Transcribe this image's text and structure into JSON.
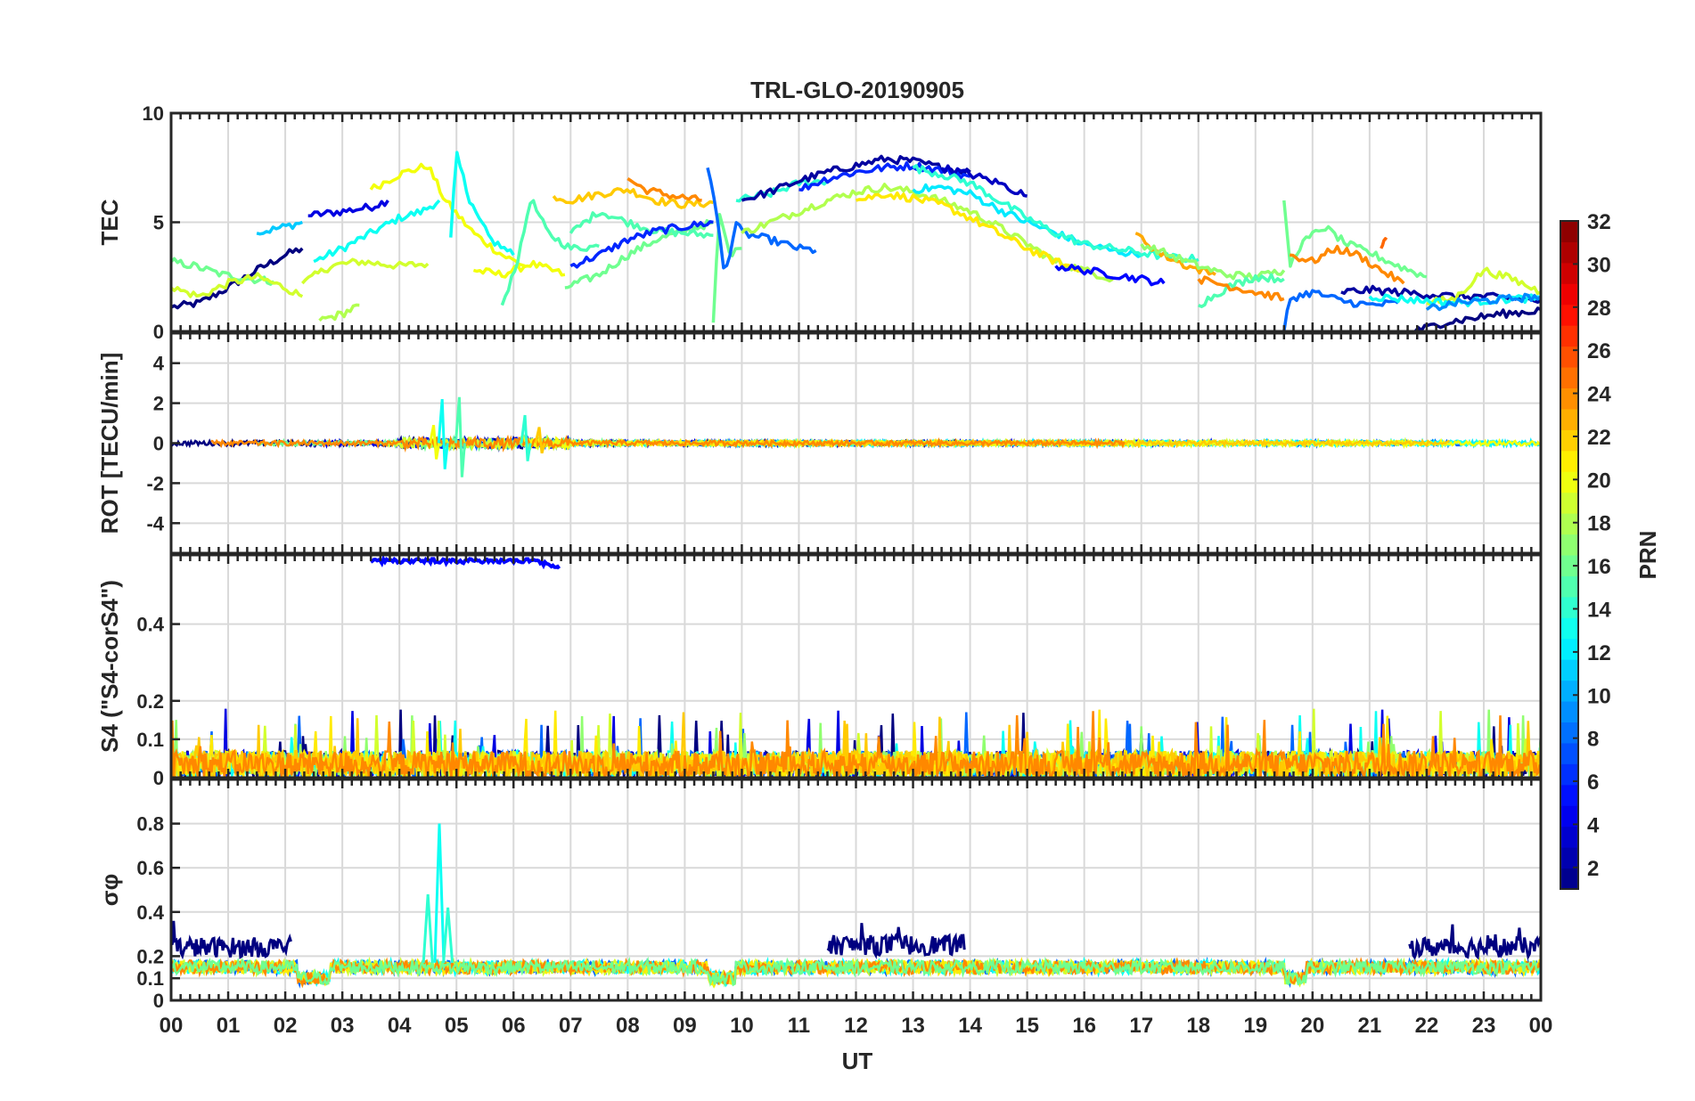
{
  "chart_data": {
    "type": "line",
    "title": "TRL-GLO-20190905",
    "xlabel": "UT",
    "xlim": [
      0,
      24
    ],
    "x_ticks": [
      "00",
      "01",
      "02",
      "03",
      "04",
      "05",
      "06",
      "07",
      "08",
      "09",
      "10",
      "11",
      "12",
      "13",
      "14",
      "15",
      "16",
      "17",
      "18",
      "19",
      "20",
      "21",
      "22",
      "23",
      "00"
    ],
    "grid": true,
    "colorbar": {
      "label": "PRN",
      "colormap": "jet",
      "range": [
        1,
        32
      ],
      "ticks": [
        "2",
        "4",
        "6",
        "8",
        "10",
        "12",
        "14",
        "16",
        "18",
        "20",
        "22",
        "24",
        "26",
        "28",
        "30",
        "32"
      ]
    },
    "panels": [
      {
        "id": "tec",
        "ylabel": "TEC",
        "ylim": [
          0,
          10
        ],
        "y_ticks": [
          "0",
          "5",
          "10"
        ],
        "series": [
          {
            "prn": 1,
            "x": [
              0.0,
              0.5,
              1.0,
              1.5,
              2.0,
              2.3
            ],
            "y": [
              1.1,
              1.3,
              2.0,
              2.8,
              3.5,
              3.8
            ]
          },
          {
            "prn": 4,
            "x": [
              2.4,
              3.0,
              3.5,
              3.8
            ],
            "y": [
              5.3,
              5.5,
              5.7,
              6.0
            ]
          },
          {
            "prn": 11,
            "x": [
              1.5,
              2.0,
              2.3
            ],
            "y": [
              4.5,
              4.8,
              5.0
            ]
          },
          {
            "prn": 13,
            "x": [
              2.5,
              3.0,
              3.5,
              4.0,
              4.4,
              4.7
            ],
            "y": [
              3.2,
              3.8,
              4.5,
              5.2,
              5.5,
              6.0
            ]
          },
          {
            "prn": 19,
            "x": [
              2.3,
              2.8,
              3.3,
              4.0,
              4.5
            ],
            "y": [
              2.2,
              3.0,
              3.2,
              3.0,
              3.1
            ]
          },
          {
            "prn": 20,
            "x": [
              3.5,
              4.0,
              4.5,
              4.8,
              5.3,
              5.8,
              6.2
            ],
            "y": [
              6.5,
              7.2,
              7.6,
              6.0,
              4.5,
              3.5,
              3.0
            ]
          },
          {
            "prn": 20,
            "x": [
              5.3,
              5.8,
              6.3,
              6.9
            ],
            "y": [
              2.8,
              2.6,
              3.1,
              2.6
            ]
          },
          {
            "prn": 18,
            "x": [
              2.6,
              3.0,
              3.3
            ],
            "y": [
              0.5,
              0.8,
              1.2
            ]
          },
          {
            "prn": 16,
            "x": [
              0.0,
              0.4,
              0.9,
              1.4,
              1.8
            ],
            "y": [
              3.2,
              3.0,
              2.6,
              2.4,
              2.3
            ]
          },
          {
            "prn": 19,
            "x": [
              0.0,
              0.5,
              1.0,
              1.5,
              2.0,
              2.3
            ],
            "y": [
              2.0,
              1.6,
              2.2,
              2.5,
              2.0,
              1.6
            ]
          },
          {
            "prn": 13,
            "x": [
              4.9,
              5.0,
              5.2,
              5.6,
              6.0
            ],
            "y": [
              4.3,
              8.5,
              6.0,
              4.2,
              3.5
            ]
          },
          {
            "prn": 15,
            "x": [
              5.8,
              6.1,
              6.3,
              6.6,
              7.0,
              7.5
            ],
            "y": [
              1.2,
              3.5,
              6.1,
              4.5,
              3.8,
              3.9
            ]
          },
          {
            "prn": 22,
            "x": [
              6.7,
              7.0,
              7.5,
              8.0,
              8.5,
              9.0,
              9.5
            ],
            "y": [
              6.2,
              6.0,
              6.3,
              6.5,
              6.0,
              5.8,
              5.9
            ]
          },
          {
            "prn": 24,
            "x": [
              8.0,
              8.3,
              8.8,
              9.3
            ],
            "y": [
              7.0,
              6.5,
              6.2,
              6.0
            ]
          },
          {
            "prn": 16,
            "x": [
              6.9,
              7.5,
              8.0,
              8.5,
              9.0,
              9.5
            ],
            "y": [
              2.0,
              2.6,
              3.5,
              4.2,
              4.6,
              5.0
            ]
          },
          {
            "prn": 15,
            "x": [
              7.0,
              7.5,
              8.0,
              8.5,
              9.0,
              9.5
            ],
            "y": [
              4.5,
              5.5,
              5.0,
              4.6,
              4.5,
              4.4
            ]
          },
          {
            "prn": 6,
            "x": [
              7.0,
              7.5,
              8.0,
              8.5,
              9.0,
              9.5
            ],
            "y": [
              3.0,
              3.5,
              4.2,
              4.6,
              4.8,
              5.0
            ]
          },
          {
            "prn": 16,
            "x": [
              9.5,
              9.6,
              9.8,
              10.0
            ],
            "y": [
              0.4,
              5.5,
              3.5,
              3.8
            ]
          },
          {
            "prn": 8,
            "x": [
              9.4,
              9.5,
              9.7,
              9.9,
              10.0,
              10.5,
              11.0,
              11.3
            ],
            "y": [
              7.5,
              6.5,
              2.5,
              5.0,
              4.5,
              4.2,
              3.8,
              3.7
            ]
          },
          {
            "prn": 14,
            "x": [
              9.9,
              10.5,
              11.0,
              11.5
            ],
            "y": [
              6.0,
              6.3,
              6.8,
              6.9
            ]
          },
          {
            "prn": 2,
            "x": [
              10.0,
              10.5,
              11.0,
              11.5,
              12.0,
              12.5,
              13.0,
              13.5,
              14.0
            ],
            "y": [
              6.0,
              6.4,
              6.9,
              7.3,
              7.6,
              7.9,
              7.8,
              7.5,
              7.3
            ]
          },
          {
            "prn": 6,
            "x": [
              11.0,
              11.5,
              12.0,
              12.5,
              13.0,
              13.5,
              14.0
            ],
            "y": [
              6.5,
              7.0,
              7.3,
              7.5,
              7.6,
              7.4,
              7.1
            ]
          },
          {
            "prn": 18,
            "x": [
              10.0,
              10.5,
              11.0,
              11.5,
              12.0,
              12.5,
              13.0,
              13.5,
              14.0,
              14.5,
              15.0,
              15.5,
              16.0,
              16.5
            ],
            "y": [
              4.5,
              5.0,
              5.5,
              6.0,
              6.4,
              6.6,
              6.4,
              6.0,
              5.5,
              4.8,
              4.0,
              3.2,
              2.8,
              2.4
            ]
          },
          {
            "prn": 21,
            "x": [
              12.0,
              12.5,
              13.0,
              13.5,
              14.0,
              14.5,
              15.0,
              15.5,
              16.0
            ],
            "y": [
              6.0,
              6.3,
              6.1,
              5.8,
              5.2,
              4.5,
              3.8,
              3.2,
              2.7
            ]
          },
          {
            "prn": 12,
            "x": [
              13.0,
              13.5,
              14.0,
              14.5,
              15.0,
              15.5,
              16.0,
              16.5,
              17.0
            ],
            "y": [
              6.5,
              6.6,
              6.3,
              5.6,
              5.0,
              4.5,
              4.0,
              3.7,
              3.5
            ]
          },
          {
            "prn": 3,
            "x": [
              13.5,
              14.0,
              14.5,
              15.0
            ],
            "y": [
              7.5,
              7.2,
              6.8,
              6.2
            ]
          },
          {
            "prn": 14,
            "x": [
              13.0,
              13.5,
              14.0,
              14.5,
              15.0,
              15.5,
              16.0,
              16.5,
              17.0,
              17.5,
              18.0
            ],
            "y": [
              7.5,
              7.2,
              6.8,
              6.0,
              5.2,
              4.5,
              4.0,
              3.8,
              3.6,
              3.4,
              3.3
            ]
          },
          {
            "prn": 5,
            "x": [
              15.5,
              16.0,
              16.5,
              17.0,
              17.4
            ],
            "y": [
              3.0,
              2.8,
              2.6,
              2.4,
              2.2
            ]
          },
          {
            "prn": 23,
            "x": [
              16.9,
              17.3,
              17.8,
              18.3
            ],
            "y": [
              4.5,
              3.6,
              3.0,
              2.6
            ]
          },
          {
            "prn": 17,
            "x": [
              17.0,
              17.5,
              18.0,
              18.5,
              19.0,
              19.5
            ],
            "y": [
              4.0,
              3.5,
              3.0,
              2.6,
              2.5,
              2.8
            ]
          },
          {
            "prn": 15,
            "x": [
              18.0,
              18.5,
              19.0,
              19.5
            ],
            "y": [
              1.2,
              2.0,
              2.5,
              2.4
            ]
          },
          {
            "prn": 24,
            "x": [
              18.0,
              18.5,
              19.0,
              19.5
            ],
            "y": [
              2.4,
              2.1,
              1.8,
              1.5
            ]
          },
          {
            "prn": 16,
            "x": [
              19.5,
              19.6,
              19.8,
              20.2,
              20.6,
              21.0,
              21.5,
              22.0
            ],
            "y": [
              6.0,
              3.0,
              4.0,
              4.8,
              4.0,
              3.6,
              3.0,
              2.5
            ]
          },
          {
            "prn": 24,
            "x": [
              19.6,
              20.0,
              20.4,
              20.8,
              21.2,
              21.6
            ],
            "y": [
              3.5,
              3.2,
              3.8,
              3.5,
              2.8,
              2.2
            ]
          },
          {
            "prn": 8,
            "x": [
              19.5,
              19.6,
              20.0,
              20.5,
              21.0,
              21.5
            ],
            "y": [
              0.0,
              1.5,
              1.8,
              1.4,
              1.2,
              1.3
            ]
          },
          {
            "prn": 2,
            "x": [
              20.5,
              21.0,
              21.5,
              22.0,
              22.5,
              23.0,
              23.5,
              24.0
            ],
            "y": [
              1.8,
              1.9,
              1.8,
              1.7,
              1.6,
              1.6,
              1.5,
              1.4
            ]
          },
          {
            "prn": 1,
            "x": [
              21.8,
              22.3,
              22.8,
              23.3,
              23.8,
              24.0
            ],
            "y": [
              0.0,
              0.4,
              0.6,
              0.8,
              0.9,
              1.0
            ]
          },
          {
            "prn": 19,
            "x": [
              22.0,
              22.5,
              23.0,
              23.5,
              24.0
            ],
            "y": [
              1.3,
              1.5,
              2.8,
              2.4,
              1.8
            ]
          },
          {
            "prn": 13,
            "x": [
              21.0,
              21.5,
              22.0,
              22.5,
              23.0,
              23.5,
              24.0
            ],
            "y": [
              1.6,
              1.5,
              1.4,
              1.3,
              1.4,
              1.5,
              1.5
            ]
          },
          {
            "prn": 9,
            "x": [
              22.0,
              22.5,
              23.0,
              23.5,
              24.0
            ],
            "y": [
              1.0,
              1.3,
              1.4,
              1.5,
              1.6
            ]
          },
          {
            "prn": 25,
            "x": [
              21.2,
              21.3
            ],
            "y": [
              3.8,
              4.2
            ]
          }
        ]
      },
      {
        "id": "rot",
        "ylabel": "ROT [TECU/min]",
        "ylim": [
          -5.5,
          5.5
        ],
        "y_ticks": [
          "-4",
          "-2",
          "0",
          "2",
          "4"
        ],
        "baseline": 0,
        "noise_amplitude": 0.12,
        "spikes": [
          {
            "prn": 13,
            "x": 4.75,
            "y": [
              2.2,
              -1.3
            ]
          },
          {
            "prn": 15,
            "x": 5.05,
            "y": [
              2.3,
              -1.7
            ]
          },
          {
            "prn": 20,
            "x": 4.6,
            "y": [
              0.9,
              -0.8
            ]
          },
          {
            "prn": 14,
            "x": 6.2,
            "y": [
              1.4,
              -0.9
            ]
          },
          {
            "prn": 22,
            "x": 6.45,
            "y": [
              0.8,
              -0.5
            ]
          }
        ]
      },
      {
        "id": "s4",
        "ylabel": "S4 (\"S4-corS4\")",
        "ylim": [
          0,
          0.58
        ],
        "y_ticks": [
          "0",
          "0.1",
          "0.2",
          "0.4"
        ],
        "typical_range": [
          0.0,
          0.1
        ],
        "peak": 0.18,
        "high_trace": {
          "prn": 5,
          "x": [
            3.5,
            6.8
          ],
          "y": 0.57
        }
      },
      {
        "id": "sigma_phi",
        "ylabel": "σφ",
        "ylim": [
          0,
          1.0
        ],
        "y_ticks": [
          "0",
          "0.1",
          "0.2",
          "0.4",
          "0.6",
          "0.8"
        ],
        "typical_level": 0.15,
        "spikes": [
          {
            "prn": 13,
            "x": 4.7,
            "y": 0.8
          },
          {
            "prn": 14,
            "x": 4.5,
            "y": 0.48
          },
          {
            "prn": 14,
            "x": 4.85,
            "y": 0.42
          }
        ],
        "elevated_segments": [
          {
            "prn": 1,
            "x": [
              0.0,
              2.1
            ],
            "y": 0.24
          },
          {
            "prn": 1,
            "x": [
              11.5,
              13.9
            ],
            "y": 0.25
          },
          {
            "prn": 1,
            "x": [
              21.7,
              24.0
            ],
            "y": 0.24
          }
        ]
      }
    ]
  }
}
